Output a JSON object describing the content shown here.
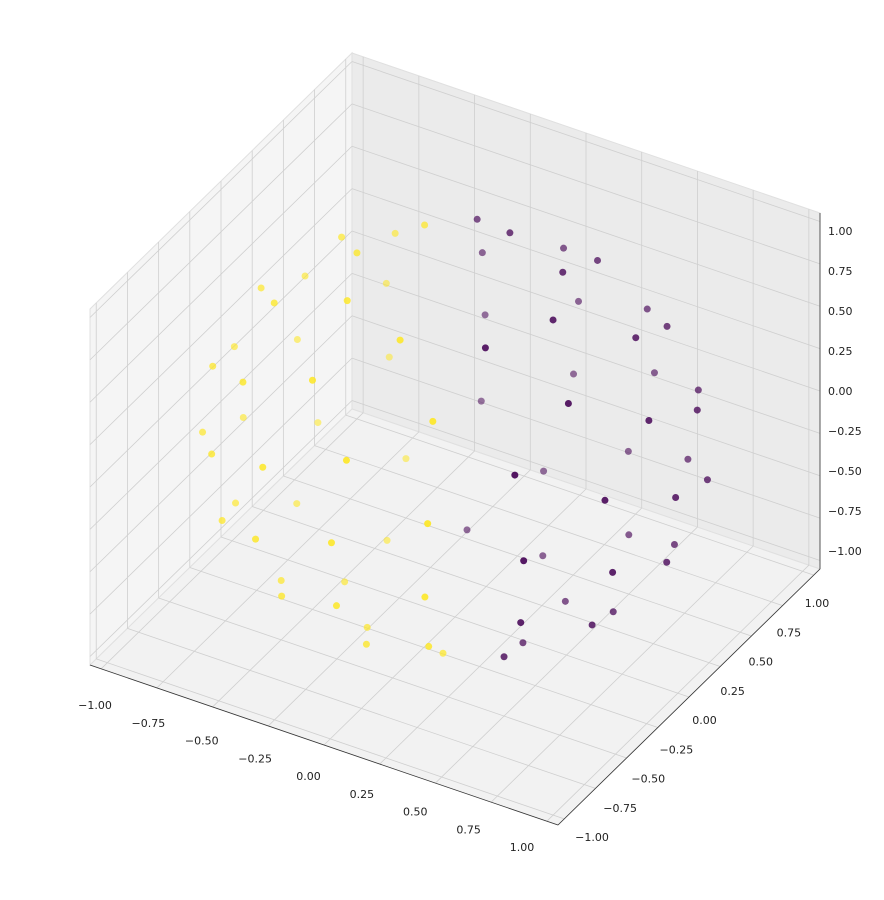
{
  "chart_data": {
    "type": "scatter3d",
    "xlim": [
      -1.05,
      1.05
    ],
    "ylim": [
      -1.05,
      1.05
    ],
    "zlim": [
      -1.05,
      1.05
    ],
    "xticks": [
      {
        "value": -1,
        "label": "−1.00"
      },
      {
        "value": -0.75,
        "label": "−0.75"
      },
      {
        "value": -0.5,
        "label": "−0.50"
      },
      {
        "value": -0.25,
        "label": "−0.25"
      },
      {
        "value": 0,
        "label": "0.00"
      },
      {
        "value": 0.25,
        "label": "0.25"
      },
      {
        "value": 0.5,
        "label": "0.50"
      },
      {
        "value": 0.75,
        "label": "0.75"
      },
      {
        "value": 1,
        "label": "1.00"
      }
    ],
    "yticks": [
      {
        "value": -1,
        "label": "−1.00"
      },
      {
        "value": -0.75,
        "label": "−0.75"
      },
      {
        "value": -0.5,
        "label": "−0.50"
      },
      {
        "value": -0.25,
        "label": "−0.25"
      },
      {
        "value": 0,
        "label": "0.00"
      },
      {
        "value": 0.25,
        "label": "0.25"
      },
      {
        "value": 0.5,
        "label": "0.50"
      },
      {
        "value": 0.75,
        "label": "0.75"
      },
      {
        "value": 1,
        "label": "1.00"
      }
    ],
    "zticks": [
      {
        "value": -1,
        "label": "−1.00"
      },
      {
        "value": -0.75,
        "label": "−0.75"
      },
      {
        "value": -0.5,
        "label": "−0.50"
      },
      {
        "value": -0.25,
        "label": "−0.25"
      },
      {
        "value": 0,
        "label": "0.00"
      },
      {
        "value": 0.25,
        "label": "0.25"
      },
      {
        "value": 0.5,
        "label": "0.50"
      },
      {
        "value": 0.75,
        "label": "0.75"
      },
      {
        "value": 1,
        "label": "1.00"
      }
    ],
    "grid": true,
    "series": [
      {
        "color": "#440154",
        "x": [
          0.44,
          0.31,
          0,
          0.31,
          0.66,
          0.27,
          -0.27,
          0.66,
          0.87,
          0.61,
          0,
          0.61,
          0.88,
          0.37,
          -0.37,
          0.88,
          0.99,
          0.7,
          0,
          0.7,
          0.92,
          0.38,
          -0.38,
          0.92,
          0.95,
          0.67,
          0,
          0.67,
          0.8,
          0.33,
          -0.33,
          0.8,
          0.71,
          0.5,
          0,
          0.5,
          0.4,
          0.17,
          -0.17,
          0.4
        ],
        "y": [
          0,
          0.31,
          0.44,
          -0.31,
          0.27,
          0.66,
          0.66,
          -0.27,
          0,
          0.61,
          0.87,
          -0.61,
          0.37,
          0.88,
          0.88,
          -0.37,
          0,
          0.7,
          0.99,
          -0.7,
          0.38,
          0.92,
          0.92,
          -0.38,
          0,
          0.67,
          0.95,
          -0.67,
          0.33,
          0.8,
          0.8,
          -0.33,
          0,
          0.5,
          0.71,
          -0.5,
          0.17,
          0.4,
          0.4,
          -0.17
        ],
        "z": [
          0.9,
          0.9,
          0.9,
          0.9,
          0.7,
          0.7,
          0.7,
          0.7,
          0.5,
          0.5,
          0.5,
          0.5,
          0.3,
          0.3,
          0.3,
          0.3,
          0.1,
          0.1,
          0.1,
          0.1,
          -0.1,
          -0.1,
          -0.1,
          -0.1,
          -0.3,
          -0.3,
          -0.3,
          -0.3,
          -0.5,
          -0.5,
          -0.5,
          -0.5,
          -0.7,
          -0.7,
          -0.7,
          -0.7,
          -0.9,
          -0.9,
          -0.9,
          -0.9
        ]
      },
      {
        "color": "#fde725",
        "x": [
          -0.31,
          -0.44,
          -0.31,
          0,
          -0.66,
          -0.66,
          -0.27,
          0.27,
          -0.61,
          -0.87,
          -0.61,
          0,
          -0.88,
          -0.88,
          -0.37,
          0.37,
          -0.7,
          -0.99,
          -0.7,
          0,
          -0.92,
          -0.92,
          -0.38,
          0.38,
          -0.67,
          -0.95,
          -0.67,
          0,
          -0.8,
          -0.8,
          -0.33,
          0.33,
          -0.5,
          -0.71,
          -0.5,
          0,
          -0.4,
          -0.4,
          -0.17,
          0.17
        ],
        "y": [
          0.31,
          0,
          -0.31,
          -0.44,
          0.27,
          -0.27,
          -0.66,
          -0.66,
          0.61,
          0,
          -0.61,
          -0.87,
          0.37,
          -0.37,
          -0.88,
          -0.88,
          0.7,
          0,
          -0.7,
          -0.99,
          0.38,
          -0.38,
          -0.92,
          -0.92,
          0.67,
          0,
          -0.67,
          -0.95,
          0.33,
          -0.33,
          -0.8,
          -0.8,
          0.5,
          0,
          -0.5,
          -0.71,
          0.17,
          -0.17,
          -0.4,
          -0.4
        ],
        "z": [
          0.9,
          0.9,
          0.9,
          0.9,
          0.7,
          0.7,
          0.7,
          0.7,
          0.5,
          0.5,
          0.5,
          0.5,
          0.3,
          0.3,
          0.3,
          0.3,
          0.1,
          0.1,
          0.1,
          0.1,
          -0.1,
          -0.1,
          -0.1,
          -0.1,
          -0.3,
          -0.3,
          -0.3,
          -0.3,
          -0.5,
          -0.5,
          -0.5,
          -0.5,
          -0.7,
          -0.7,
          -0.7,
          -0.7,
          -0.9,
          -0.9,
          -0.9,
          -0.9
        ]
      }
    ]
  }
}
